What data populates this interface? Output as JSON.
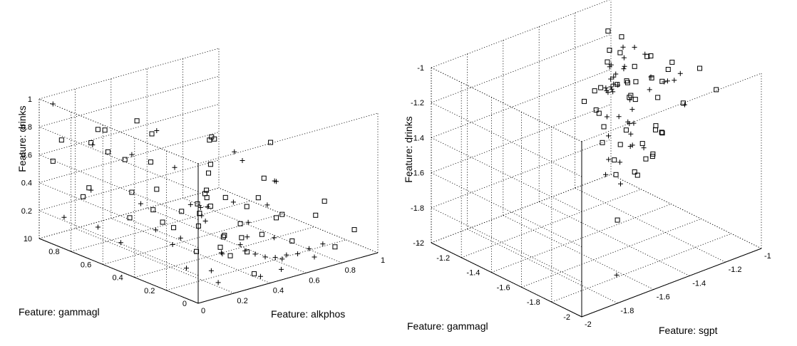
{
  "chart_data": [
    {
      "type": "scatter",
      "projection": "3d",
      "grid": true,
      "xlabel": "Feature: alkphos",
      "ylabel": "Feature: gammagl",
      "zlabel": "Feature: drinks",
      "xlim": [
        0,
        1
      ],
      "ylim": [
        0,
        1
      ],
      "zlim": [
        0,
        1
      ],
      "xticks": [
        0,
        0.2,
        0.4,
        0.6,
        0.8,
        1
      ],
      "yticks": [
        0,
        0.2,
        0.4,
        0.6,
        0.8,
        1
      ],
      "zticks": [
        0,
        0.2,
        0.4,
        0.6,
        0.8,
        1
      ],
      "xtick_labels": [
        "0",
        "0.2",
        "0.4",
        "0.6",
        "0.8",
        "1"
      ],
      "ytick_labels": [
        "0",
        "0.2",
        "0.4",
        "0.6",
        "0.8",
        "1"
      ],
      "ztick_labels": [
        "0",
        "0.2",
        "0.4",
        "0.6",
        "0.8",
        "1"
      ],
      "series": [
        {
          "marker": "square",
          "points": [
            [
              0.24,
              0.2,
              0.99
            ],
            [
              0.34,
              0.3,
              0.93
            ],
            [
              0.4,
              0.35,
              0.87
            ],
            [
              0.58,
              0.2,
              0.85
            ],
            [
              0.19,
              0.6,
              0.96
            ],
            [
              0.1,
              0.7,
              0.88
            ],
            [
              0.15,
              0.8,
              0.82
            ],
            [
              0.45,
              0.8,
              0.68
            ],
            [
              0.6,
              0.6,
              0.5
            ],
            [
              0.88,
              0.2,
              0.32
            ],
            [
              0.08,
              0.95,
              0.7
            ],
            [
              0.2,
              0.9,
              0.66
            ],
            [
              0.25,
              0.85,
              0.6
            ],
            [
              0.3,
              0.8,
              0.55
            ],
            [
              0.32,
              0.66,
              0.59
            ],
            [
              0.5,
              0.5,
              0.52
            ],
            [
              0.4,
              0.4,
              0.48
            ],
            [
              0.3,
              0.6,
              0.43
            ],
            [
              0.35,
              0.4,
              0.4
            ],
            [
              0.42,
              0.42,
              0.41
            ],
            [
              0.48,
              0.5,
              0.38
            ],
            [
              0.6,
              0.3,
              0.4
            ],
            [
              0.55,
              0.45,
              0.35
            ],
            [
              0.3,
              0.2,
              0.2
            ],
            [
              0.35,
              0.5,
              0.3
            ],
            [
              0.45,
              0.5,
              0.25
            ],
            [
              0.2,
              0.45,
              0.3
            ],
            [
              0.25,
              0.7,
              0.38
            ],
            [
              0.28,
              0.6,
              0.29
            ],
            [
              0.6,
              0.15,
              0.35
            ],
            [
              0.5,
              0.3,
              0.25
            ],
            [
              0.4,
              0.45,
              0.2
            ],
            [
              0.35,
              0.55,
              0.16
            ],
            [
              0.45,
              0.35,
              0.15
            ],
            [
              0.1,
              0.8,
              0.42
            ],
            [
              0.15,
              0.6,
              0.28
            ],
            [
              0.3,
              0.35,
              0.1
            ],
            [
              0.4,
              0.25,
              0.08
            ],
            [
              0.5,
              0.4,
              0.12
            ],
            [
              0.56,
              0.36,
              0.1
            ],
            [
              0.62,
              0.3,
              0.13
            ],
            [
              0.7,
              0.2,
              0.1
            ],
            [
              0.52,
              0.28,
              0.05
            ],
            [
              0.4,
              0.1,
              0.02
            ],
            [
              0.6,
              0.6,
              0.2
            ],
            [
              0.7,
              0.3,
              0.22
            ],
            [
              0.66,
              0.44,
              0.25
            ],
            [
              0.2,
              0.95,
              0.25
            ],
            [
              0.05,
              0.97,
              0.55
            ],
            [
              0.85,
              0.1,
              0.05
            ],
            [
              0.94,
              0.08,
              0.15
            ],
            [
              0.76,
              0.12,
              0.3
            ],
            [
              0.72,
              0.4,
              0.45
            ]
          ]
        },
        {
          "marker": "plus",
          "points": [
            [
              0.05,
              0.97,
              0.96
            ],
            [
              0.3,
              0.6,
              0.85
            ],
            [
              0.52,
              0.36,
              0.73
            ],
            [
              0.6,
              0.4,
              0.62
            ],
            [
              0.12,
              0.8,
              0.72
            ],
            [
              0.25,
              0.7,
              0.65
            ],
            [
              0.4,
              0.6,
              0.55
            ],
            [
              0.62,
              0.22,
              0.55
            ],
            [
              0.7,
              0.3,
              0.48
            ],
            [
              0.2,
              0.9,
              0.32
            ],
            [
              0.3,
              0.7,
              0.28
            ],
            [
              0.4,
              0.5,
              0.33
            ],
            [
              0.45,
              0.45,
              0.32
            ],
            [
              0.55,
              0.4,
              0.34
            ],
            [
              0.65,
              0.3,
              0.33
            ],
            [
              0.5,
              0.55,
              0.25
            ],
            [
              0.35,
              0.35,
              0.3
            ],
            [
              0.25,
              0.55,
              0.18
            ],
            [
              0.45,
              0.2,
              0.22
            ],
            [
              0.6,
              0.2,
              0.16
            ],
            [
              0.3,
              0.45,
              0.15
            ],
            [
              0.35,
              0.25,
              0.12
            ],
            [
              0.5,
              0.3,
              0.1
            ],
            [
              0.55,
              0.2,
              0.04
            ],
            [
              0.6,
              0.15,
              0.03
            ],
            [
              0.66,
              0.12,
              0.06
            ],
            [
              0.7,
              0.06,
              0.05
            ],
            [
              0.58,
              0.1,
              0.09
            ],
            [
              0.4,
              0.3,
              0.07
            ],
            [
              0.65,
              0.42,
              0.15
            ],
            [
              0.2,
              0.3,
              0.04
            ],
            [
              0.1,
              0.6,
              0.12
            ],
            [
              0.15,
              0.8,
              0.12
            ],
            [
              0.05,
              0.9,
              0.18
            ],
            [
              0.75,
              0.15,
              0.05
            ],
            [
              0.55,
              0.6,
              0.15
            ],
            [
              0.42,
              0.18,
              0.14
            ],
            [
              0.45,
              0.15,
              0.12
            ],
            [
              0.5,
              0.08,
              0.11
            ],
            [
              0.3,
              0.5,
              0.08
            ],
            [
              0.25,
              0.2,
              0.05
            ],
            [
              0.2,
              0.1,
              0.03
            ],
            [
              0.4,
              0.06,
              0.02
            ],
            [
              0.48,
              0.02,
              0.06
            ],
            [
              0.8,
              0.12,
              0.08
            ]
          ]
        }
      ]
    },
    {
      "type": "scatter",
      "projection": "3d",
      "grid": true,
      "xlabel": "Feature: sgpt",
      "ylabel": "Feature: gammagl",
      "zlabel": "Feature: drinks",
      "xlim": [
        -2,
        -1
      ],
      "ylim": [
        -2,
        -1
      ],
      "zlim": [
        -2,
        -1
      ],
      "xticks": [
        -2,
        -1.8,
        -1.6,
        -1.4,
        -1.2,
        -1
      ],
      "yticks": [
        -2,
        -1.8,
        -1.6,
        -1.4,
        -1.2,
        -1
      ],
      "zticks": [
        -2,
        -1.8,
        -1.6,
        -1.4,
        -1.2,
        -1
      ],
      "xtick_labels": [
        "-2",
        "-1.8",
        "-1.6",
        "-1.4",
        "-1.2",
        "-1"
      ],
      "ytick_labels": [
        "-2",
        "-1.8",
        "-1.6",
        "-1.4",
        "-1.2",
        "-1"
      ],
      "ztick_labels": [
        "-2",
        "-1.8",
        "-1.6",
        "-1.4",
        "-1.2",
        "-1"
      ],
      "series": [
        {
          "marker": "square",
          "points": [
            [
              -1.1,
              -1.5,
              -1.15
            ],
            [
              -1.15,
              -1.45,
              -1.2
            ],
            [
              -1.05,
              -1.4,
              -1.28
            ],
            [
              -1.2,
              -1.35,
              -1.25
            ],
            [
              -1.05,
              -1.3,
              -1.18
            ],
            [
              -1.08,
              -1.2,
              -1.35
            ],
            [
              -1.15,
              -1.1,
              -1.55
            ],
            [
              -1.3,
              -1.25,
              -1.3
            ],
            [
              -1.25,
              -1.4,
              -1.48
            ],
            [
              -1.35,
              -1.35,
              -1.22
            ],
            [
              -1.4,
              -1.3,
              -1.3
            ],
            [
              -1.2,
              -1.55,
              -1.25
            ],
            [
              -1.1,
              -1.6,
              -1.3
            ],
            [
              -1.0,
              -1.7,
              -1.22
            ],
            [
              -1.05,
              -1.65,
              -1.1
            ],
            [
              -1.12,
              -1.55,
              -1.08
            ],
            [
              -1.18,
              -1.48,
              -1.05
            ],
            [
              -1.22,
              -1.42,
              -1.12
            ],
            [
              -1.28,
              -1.5,
              -1.15
            ],
            [
              -1.3,
              -1.4,
              -1.2
            ],
            [
              -1.35,
              -1.55,
              -1.18
            ],
            [
              -1.4,
              -1.6,
              -1.15
            ],
            [
              -1.45,
              -1.7,
              -1.1
            ],
            [
              -1.5,
              -1.55,
              -1.3
            ],
            [
              -1.55,
              -1.6,
              -1.35
            ],
            [
              -1.55,
              -1.7,
              -1.75
            ],
            [
              -1.6,
              -1.75,
              -1.45
            ],
            [
              -1.45,
              -1.6,
              -1.4
            ],
            [
              -1.4,
              -1.5,
              -1.55
            ],
            [
              -1.35,
              -1.65,
              -1.5
            ],
            [
              -1.3,
              -1.7,
              -1.35
            ],
            [
              -1.38,
              -1.75,
              -1.28
            ],
            [
              -1.42,
              -1.8,
              -1.22
            ],
            [
              -1.48,
              -1.85,
              -1.35
            ],
            [
              -1.52,
              -1.9,
              -1.3
            ],
            [
              -1.2,
              -1.3,
              -1.1
            ],
            [
              -1.15,
              -1.25,
              -1.05
            ],
            [
              -1.1,
              -1.1,
              -1.1
            ],
            [
              -1.05,
              -1.05,
              -1.25
            ],
            [
              -1.02,
              -1.0,
              -1.35
            ],
            [
              -1.25,
              -1.2,
              -1.45
            ],
            [
              -1.22,
              -1.6,
              -1.42
            ],
            [
              -1.48,
              -1.75,
              -1.5
            ],
            [
              -1.58,
              -1.85,
              -1.4
            ],
            [
              -1.62,
              -1.95,
              -1.18
            ]
          ]
        },
        {
          "marker": "plus",
          "points": [
            [
              -1.0,
              -1.0,
              -1.5
            ],
            [
              -1.1,
              -1.2,
              -1.15
            ],
            [
              -1.12,
              -1.3,
              -1.1
            ],
            [
              -1.18,
              -1.3,
              -1.2
            ],
            [
              -1.22,
              -1.35,
              -1.1
            ],
            [
              -1.25,
              -1.3,
              -1.15
            ],
            [
              -1.3,
              -1.35,
              -1.12
            ],
            [
              -1.32,
              -1.4,
              -1.15
            ],
            [
              -1.35,
              -1.45,
              -1.1
            ],
            [
              -1.38,
              -1.42,
              -1.18
            ],
            [
              -1.42,
              -1.5,
              -1.08
            ],
            [
              -1.45,
              -1.55,
              -1.12
            ],
            [
              -1.28,
              -1.6,
              -1.08
            ],
            [
              -1.2,
              -1.7,
              -1.05
            ],
            [
              -1.15,
              -1.6,
              -1.15
            ],
            [
              -1.08,
              -1.45,
              -1.25
            ],
            [
              -1.12,
              -1.4,
              -1.3
            ],
            [
              -1.02,
              -1.25,
              -1.2
            ],
            [
              -1.05,
              -1.15,
              -1.3
            ],
            [
              -1.15,
              -1.15,
              -1.4
            ],
            [
              -1.18,
              -1.22,
              -1.35
            ],
            [
              -1.5,
              -1.65,
              -1.2
            ],
            [
              -1.6,
              -1.7,
              -1.25
            ],
            [
              -1.65,
              -1.75,
              -1.1
            ],
            [
              -1.75,
              -1.88,
              -1.25
            ],
            [
              -1.8,
              -1.92,
              -1.3
            ],
            [
              -1.7,
              -1.9,
              -1.4
            ],
            [
              -1.62,
              -1.8,
              -1.35
            ],
            [
              -1.55,
              -1.8,
              -1.28
            ],
            [
              -1.52,
              -1.75,
              -1.32
            ],
            [
              -1.42,
              -1.72,
              -1.38
            ],
            [
              -1.4,
              -1.6,
              -1.3
            ],
            [
              -1.35,
              -1.55,
              -1.4
            ],
            [
              -1.3,
              -1.5,
              -1.3
            ],
            [
              -1.25,
              -1.45,
              -1.42
            ],
            [
              -1.28,
              -1.38,
              -1.22
            ],
            [
              -1.22,
              -1.28,
              -1.28
            ],
            [
              -1.1,
              -1.1,
              -1.45
            ],
            [
              -1.12,
              -1.52,
              -1.2
            ],
            [
              -1.05,
              -1.55,
              -1.35
            ],
            [
              -1.68,
              -1.85,
              -1.95
            ],
            [
              -1.45,
              -1.65,
              -1.25
            ],
            [
              -1.38,
              -1.58,
              -1.18
            ]
          ]
        }
      ]
    }
  ]
}
